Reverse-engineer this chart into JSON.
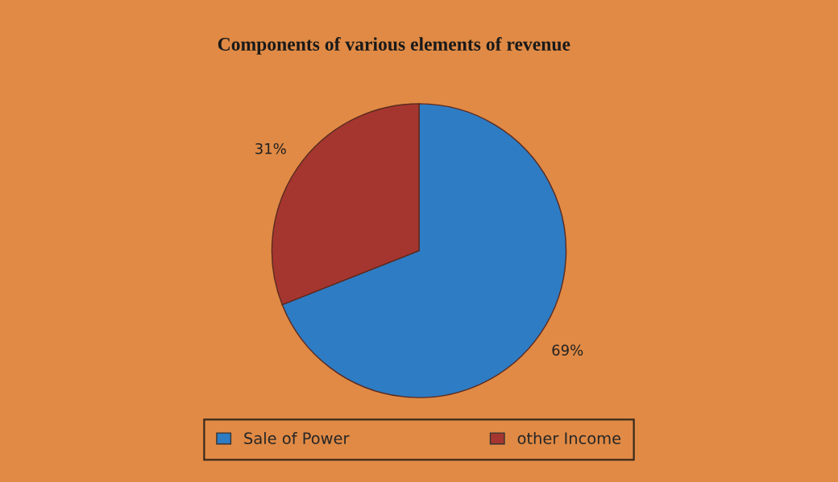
{
  "chart_data": {
    "type": "pie",
    "title": "Components of various elements of revenue",
    "categories": [
      "Sale of Power",
      "other Income"
    ],
    "values": [
      69,
      31
    ],
    "colors": [
      "#2e7cc4",
      "#a5362f"
    ],
    "value_labels": [
      "69%",
      "31%"
    ],
    "legend": "bottom"
  }
}
